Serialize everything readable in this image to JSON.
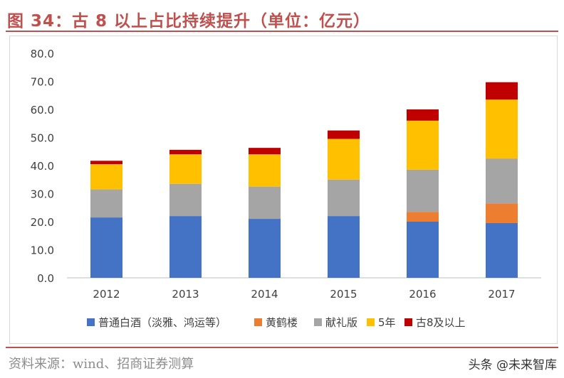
{
  "header": {
    "title": "图 34：古 8 以上占比持续提升（单位：亿元）"
  },
  "footer": {
    "source": "资料来源：wind、招商证券测算",
    "watermark": "头条 @未来智库"
  },
  "colors": {
    "accent": "#c0504d",
    "series": [
      "#4472c4",
      "#ed7d31",
      "#a5a5a5",
      "#ffc000",
      "#c00000"
    ]
  },
  "chart_data": {
    "type": "bar",
    "stacked": true,
    "categories": [
      "2012",
      "2013",
      "2014",
      "2015",
      "2016",
      "2017"
    ],
    "series": [
      {
        "name": "普通白酒（淡雅、鸿运等）",
        "values": [
          21.5,
          22.0,
          21.0,
          22.0,
          20.0,
          19.5
        ]
      },
      {
        "name": "黄鹤楼",
        "values": [
          0,
          0,
          0,
          0,
          3.5,
          7.0
        ]
      },
      {
        "name": "献礼版",
        "values": [
          10.0,
          11.5,
          11.5,
          13.0,
          15.0,
          16.0
        ]
      },
      {
        "name": "5年",
        "values": [
          9.0,
          10.5,
          11.5,
          14.5,
          17.5,
          21.0
        ]
      },
      {
        "name": "古8及以上",
        "values": [
          1.2,
          1.6,
          2.3,
          3.0,
          4.0,
          6.2
        ]
      }
    ],
    "yticks": [
      "0.0",
      "10.0",
      "20.0",
      "30.0",
      "40.0",
      "50.0",
      "60.0",
      "70.0",
      "80.0"
    ],
    "ylim": [
      0,
      80
    ],
    "grid": false,
    "legend": "bottom"
  }
}
